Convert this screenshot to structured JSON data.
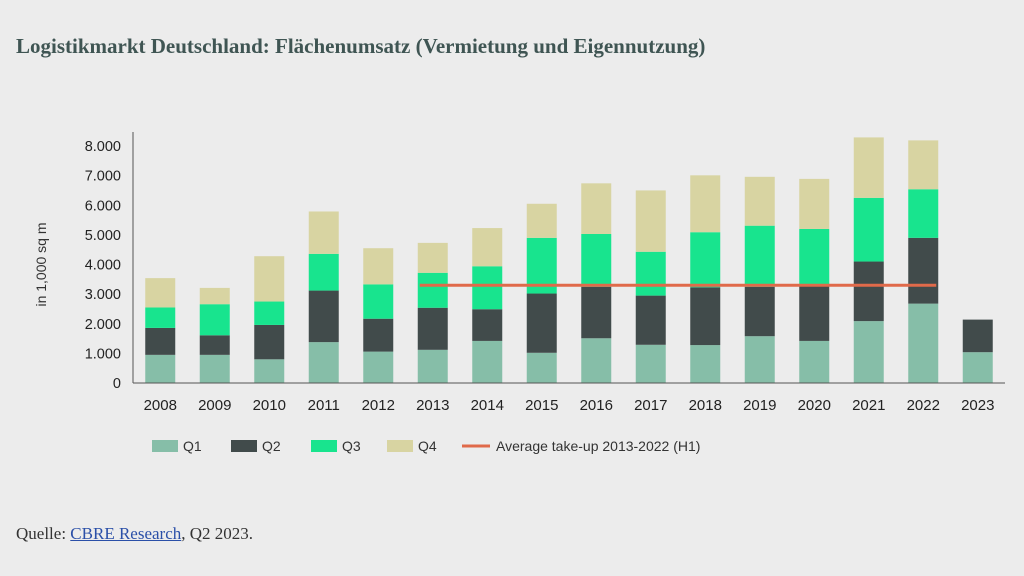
{
  "page": {
    "title": "Logistikmarkt Deutschland: Flächenumsatz (Vermietung und Eigennutzung)",
    "source_prefix": "Quelle: ",
    "source_link": "CBRE Research",
    "source_suffix": ", Q2 2023."
  },
  "chart_data": {
    "type": "bar",
    "stacked": true,
    "title": "",
    "xlabel": "",
    "ylabel": "in 1,000 sq m",
    "ylim": [
      0,
      8000
    ],
    "yticks": [
      0,
      1000,
      2000,
      3000,
      4000,
      5000,
      6000,
      7000,
      8000
    ],
    "ytick_labels": [
      "0",
      "1.000",
      "2.000",
      "3.000",
      "4.000",
      "5.000",
      "6.000",
      "7.000",
      "8.000"
    ],
    "categories": [
      "2008",
      "2009",
      "2010",
      "2011",
      "2012",
      "2013",
      "2014",
      "2015",
      "2016",
      "2017",
      "2018",
      "2019",
      "2020",
      "2021",
      "2022",
      "2023"
    ],
    "grid": false,
    "legend_position": "bottom",
    "series": [
      {
        "name": "Q1",
        "color": "#86bea8",
        "values": [
          950,
          950,
          800,
          1380,
          1060,
          1120,
          1420,
          1020,
          1510,
          1290,
          1280,
          1580,
          1420,
          2090,
          2680,
          1040
        ]
      },
      {
        "name": "Q2",
        "color": "#414b4b",
        "values": [
          910,
          660,
          1160,
          1740,
          1110,
          1420,
          1070,
          2000,
          1740,
          1660,
          1950,
          1670,
          1880,
          2010,
          2220,
          1100
        ]
      },
      {
        "name": "Q3",
        "color": "#18e48e",
        "values": [
          690,
          1050,
          790,
          1240,
          1160,
          1180,
          1450,
          1880,
          1780,
          1480,
          1860,
          2060,
          1900,
          2150,
          1640,
          0
        ]
      },
      {
        "name": "Q4",
        "color": "#d8d4a2",
        "values": [
          990,
          550,
          1530,
          1430,
          1220,
          1010,
          1290,
          1150,
          1710,
          2070,
          1920,
          1650,
          1690,
          2040,
          1650,
          0
        ]
      }
    ],
    "average_line": {
      "name": "Average take-up 2013-2022 (H1)",
      "color": "#e06a4a",
      "value": 3300,
      "from": "2013",
      "to": "2022"
    }
  }
}
